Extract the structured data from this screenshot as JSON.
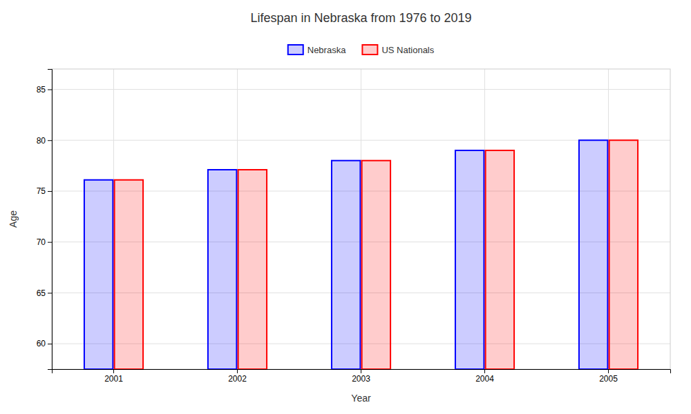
{
  "chart_data": {
    "type": "bar",
    "title": "Lifespan in Nebraska from 1976 to 2019",
    "x_label": "Year",
    "y_label": "Age",
    "categories": [
      "2001",
      "2002",
      "2003",
      "2004",
      "2005"
    ],
    "series": [
      {
        "name": "Nebraska",
        "color": "#0000ff",
        "values": [
          76.1,
          77.1,
          78.0,
          79.0,
          80.0
        ]
      },
      {
        "name": "US Nationals",
        "color": "#ff0000",
        "values": [
          76.1,
          77.1,
          78.0,
          79.0,
          80.0
        ]
      }
    ],
    "ylim": [
      57.5,
      87
    ],
    "yticks": [
      60,
      65,
      70,
      75,
      80,
      85
    ],
    "grid": true,
    "legend": "top"
  }
}
